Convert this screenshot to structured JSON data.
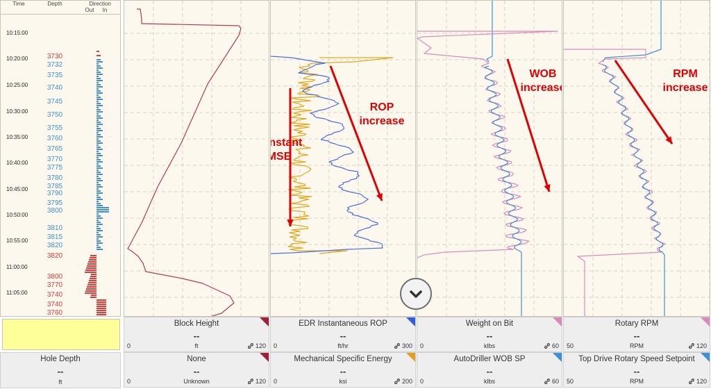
{
  "time_track": {
    "headers": {
      "time": "Time",
      "depth": "Depth",
      "direction": "Direction",
      "out": "Out",
      "in": "In"
    },
    "times": [
      "10:15:00",
      "10:20:00",
      "10:25:00",
      "10:30:00",
      "10:35:00",
      "10:40:00",
      "10:45:00",
      "10:50:00",
      "10:55:00",
      "11:00:00",
      "11:05:00"
    ],
    "depths": [
      {
        "label": "3730",
        "color": "#e53935"
      },
      {
        "label": "3732",
        "color": "#3f8fd2"
      },
      {
        "label": "3735",
        "color": "#3f8fd2"
      },
      {
        "label": "3740",
        "color": "#3f8fd2"
      },
      {
        "label": "3745",
        "color": "#3f8fd2"
      },
      {
        "label": "3750",
        "color": "#3f8fd2"
      },
      {
        "label": "3755",
        "color": "#3f8fd2"
      },
      {
        "label": "3760",
        "color": "#3f8fd2"
      },
      {
        "label": "3765",
        "color": "#3f8fd2"
      },
      {
        "label": "3770",
        "color": "#3f8fd2"
      },
      {
        "label": "3775",
        "color": "#3f8fd2"
      },
      {
        "label": "3780",
        "color": "#3f8fd2"
      },
      {
        "label": "3785",
        "color": "#3f8fd2"
      },
      {
        "label": "3790",
        "color": "#3f8fd2"
      },
      {
        "label": "3795",
        "color": "#3f8fd2"
      },
      {
        "label": "3800",
        "color": "#3f8fd2"
      },
      {
        "label": "3810",
        "color": "#3f8fd2"
      },
      {
        "label": "3815",
        "color": "#3f8fd2"
      },
      {
        "label": "3820",
        "color": "#3f8fd2"
      },
      {
        "label": "3820",
        "color": "#e53935"
      },
      {
        "label": "3800",
        "color": "#e53935"
      },
      {
        "label": "3770",
        "color": "#e53935"
      },
      {
        "label": "3740",
        "color": "#e53935"
      },
      {
        "label": "3740",
        "color": "#e53935"
      },
      {
        "label": "3760",
        "color": "#e53935"
      }
    ]
  },
  "annotations": {
    "constant_mse": [
      "constant",
      "MSE"
    ],
    "rop_increase": [
      "ROP",
      "increase"
    ],
    "wob_increase": [
      "WOB",
      "increase"
    ],
    "rpm_increase": [
      "RPM",
      "increase"
    ]
  },
  "panels": {
    "block_height": {
      "label": "Block Height",
      "value": "--",
      "min": "0",
      "unit": "ft",
      "max": "120",
      "color": "#a0203a"
    },
    "none": {
      "label": "None",
      "value": "--",
      "min": "0",
      "unit": "Unknown",
      "max": "120",
      "color": "#a0203a"
    },
    "edr_rop": {
      "label": "EDR Instantaneous ROP",
      "value": "--",
      "min": "0",
      "unit": "ft/hr",
      "max": "300",
      "color": "#2f5fe0"
    },
    "mse": {
      "label": "Mechanical Specific Energy",
      "value": "--",
      "min": "0",
      "unit": "ksi",
      "max": "200",
      "color": "#e3a020"
    },
    "wob": {
      "label": "Weight on Bit",
      "value": "--",
      "min": "0",
      "unit": "klbs",
      "max": "60",
      "color": "#d88ab8"
    },
    "wob_sp": {
      "label": "AutoDriller WOB SP",
      "value": "--",
      "min": "0",
      "unit": "klbs",
      "max": "60",
      "color": "#3f8fd2"
    },
    "rpm": {
      "label": "Rotary RPM",
      "value": "--",
      "min": "50",
      "unit": "RPM",
      "max": "120",
      "color": "#d88ab8"
    },
    "rpm_sp": {
      "label": "Top Drive Rotary Speed Setpoint",
      "value": "--",
      "min": "50",
      "unit": "RPM",
      "max": "120",
      "color": "#3f8fd2"
    },
    "hole_depth": {
      "label": "Hole Depth",
      "value": "--",
      "unit": "ft"
    }
  },
  "colors": {
    "block_height": "#b03a55",
    "rop": "#4a6fe0",
    "mse": "#e0aa20",
    "wob": "#d98cbc",
    "setpoint": "#3f8fd2",
    "annotation": "#e00000",
    "direction_out": "#e53935",
    "direction_in": "#3f8fd2"
  },
  "icons": {
    "link": "link-icon",
    "scroll": "chevron-down-icon"
  }
}
